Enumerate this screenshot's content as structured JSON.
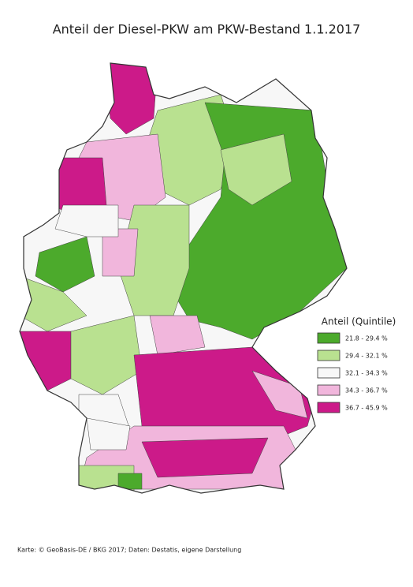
{
  "title": "Anteil der Diesel-PKW am PKW-Bestand 1.1.2017",
  "legend": {
    "title": "Anteil (Quintile)",
    "items": [
      {
        "label": "21.8 - 29.4 %",
        "color": "#4caa2c"
      },
      {
        "label": "29.4 - 32.1 %",
        "color": "#b9e190"
      },
      {
        "label": "32.1 - 34.3 %",
        "color": "#f7f7f7"
      },
      {
        "label": "34.3 - 36.7 %",
        "color": "#f1b6dc"
      },
      {
        "label": "36.7 - 45.9 %",
        "color": "#cc1a89"
      }
    ]
  },
  "source": "Karte: © GeoBasis-DE / BKG 2017; Daten: Destatis, eigene Darstellung"
}
